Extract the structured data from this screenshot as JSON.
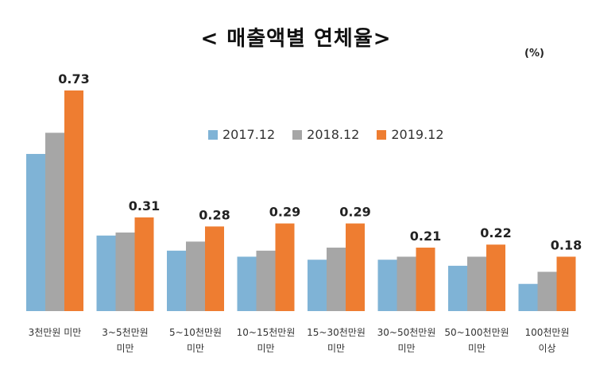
{
  "chart_data": {
    "type": "bar",
    "title": "< 매출액별 연체율>",
    "unit": "(%)",
    "categories": [
      [
        "3천만원 미만"
      ],
      [
        "3~5천만원",
        "미만"
      ],
      [
        "5~10천만원",
        "미만"
      ],
      [
        "10~15천만원",
        "미만"
      ],
      [
        "15~30천만원",
        "미만"
      ],
      [
        "30~50천만원",
        "미만"
      ],
      [
        "50~100천만원",
        "미만"
      ],
      [
        "100천만원",
        "이상"
      ]
    ],
    "series": [
      {
        "name": "2017.12",
        "color": "#7fb3d6",
        "values": [
          0.52,
          0.25,
          0.2,
          0.18,
          0.17,
          0.17,
          0.15,
          0.09
        ]
      },
      {
        "name": "2018.12",
        "color": "#a6a6a6",
        "values": [
          0.59,
          0.26,
          0.23,
          0.2,
          0.21,
          0.18,
          0.18,
          0.13
        ]
      },
      {
        "name": "2019.12",
        "color": "#ee7d31",
        "values": [
          0.73,
          0.31,
          0.28,
          0.29,
          0.29,
          0.21,
          0.22,
          0.18
        ]
      }
    ],
    "data_labels": [
      "0.73",
      "0.31",
      "0.28",
      "0.29",
      "0.29",
      "0.21",
      "0.22",
      "0.18"
    ],
    "ylim": [
      0,
      0.73
    ],
    "legend_position": "top-center",
    "grid": false
  }
}
